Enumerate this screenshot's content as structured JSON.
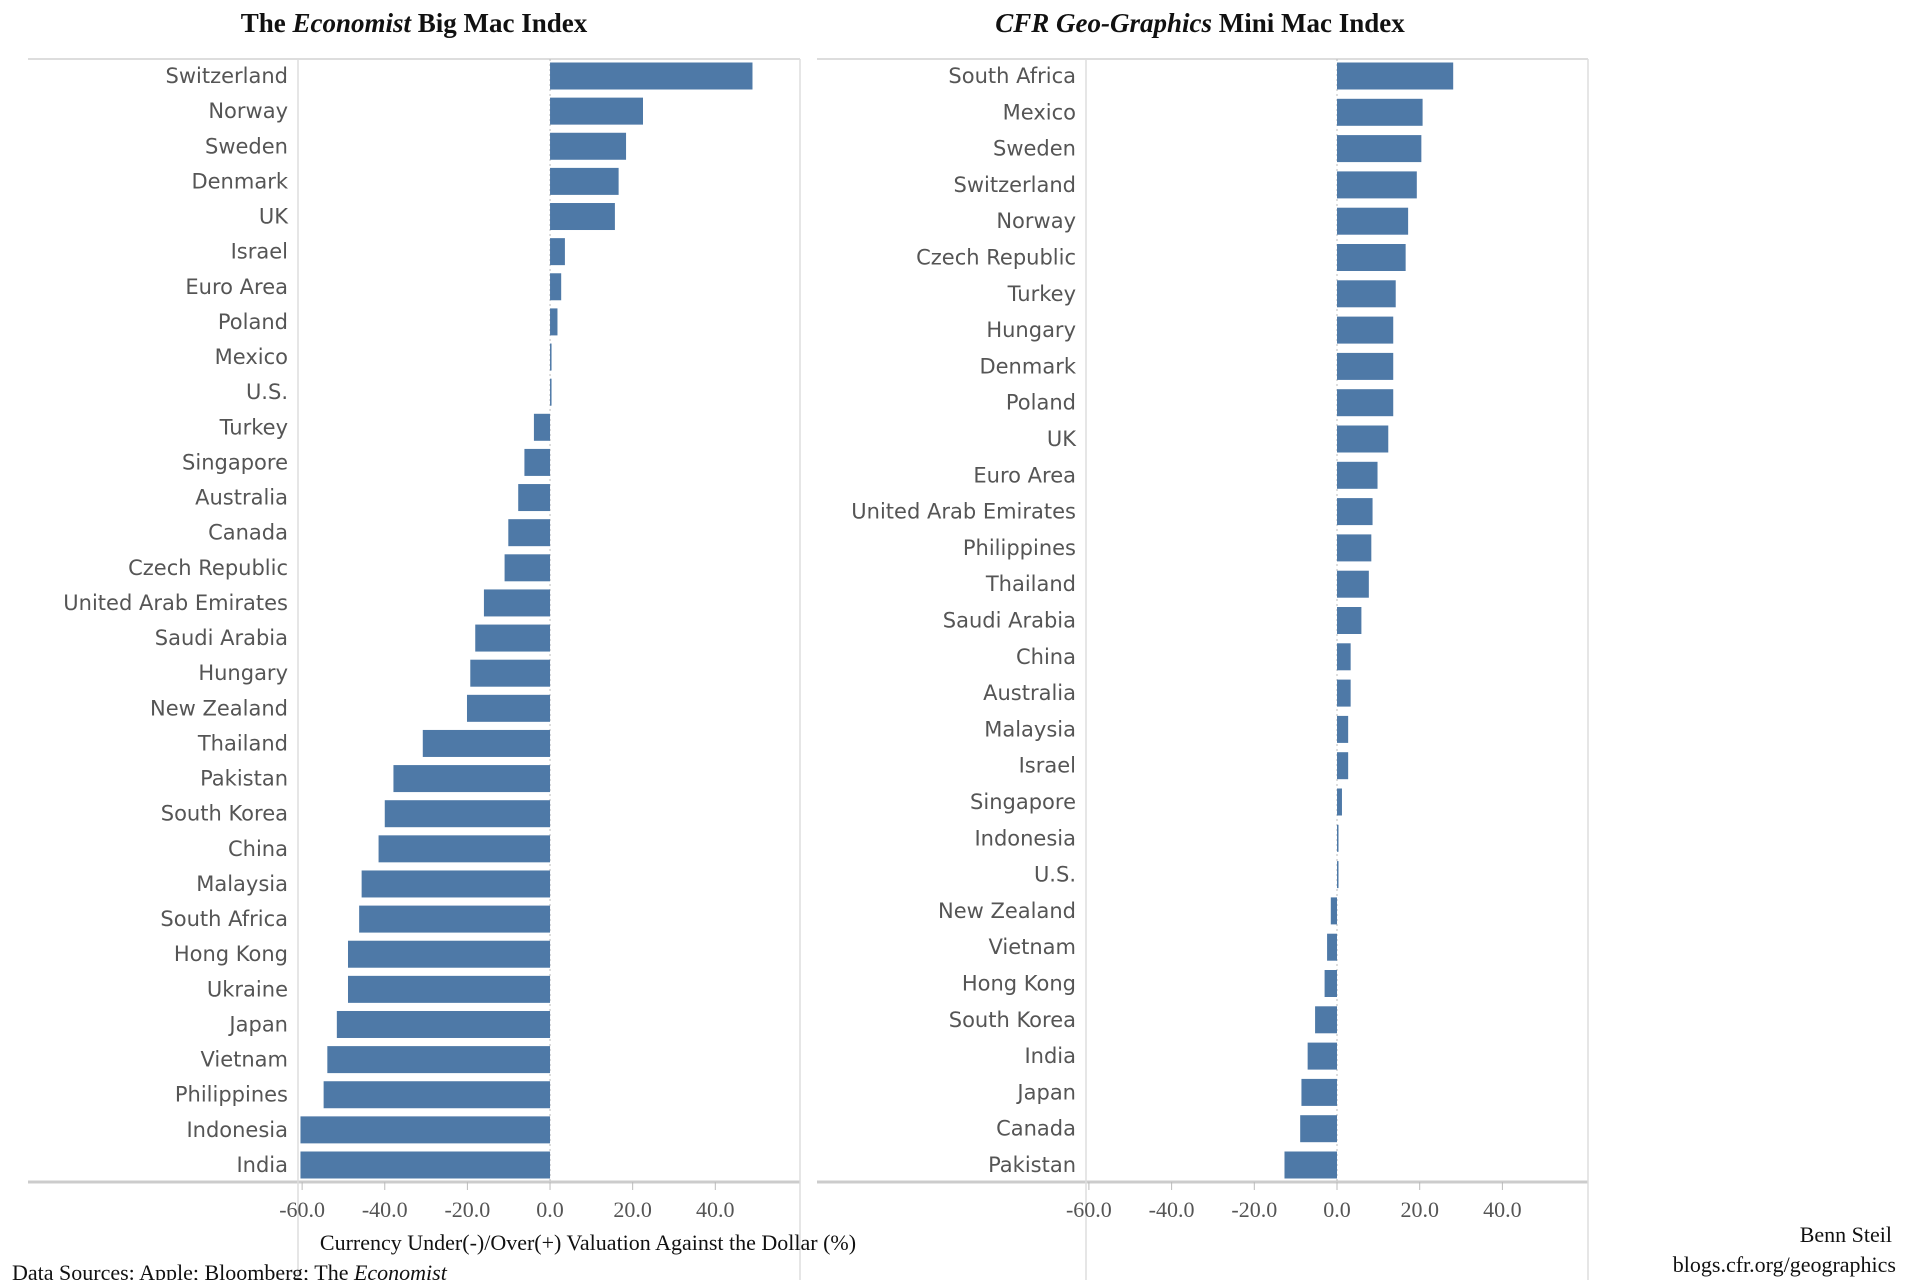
{
  "footer": {
    "axis_title": "Currency Under(-)/Over(+) Valuation Against the Dollar (%)",
    "sources_prefix": "Data Sources: Apple; Bloomberg; The ",
    "sources_italic": "Economist",
    "author": "Benn Steil",
    "site": "blogs.cfr.org/geographics"
  },
  "chart_data": [
    {
      "type": "bar",
      "orientation": "horizontal",
      "title_parts": [
        {
          "text": "The ",
          "italic": false
        },
        {
          "text": "Economist",
          "italic": true
        },
        {
          "text": " Big Mac Index",
          "italic": false
        }
      ],
      "title": "The Economist Big Mac Index",
      "xlabel": "Currency Under(-)/Over(+) Valuation Against the Dollar (%)",
      "xlim": [
        -61,
        60.5
      ],
      "xticks": [
        "-60.0",
        "-40.0",
        "-20.0",
        "0.0",
        "20.0",
        "40.0"
      ],
      "grid": false,
      "color": "#4e79a7",
      "categories": [
        "Switzerland",
        "Norway",
        "Sweden",
        "Denmark",
        "UK",
        "Israel",
        "Euro Area",
        "Poland",
        "Mexico",
        "U.S.",
        "Turkey",
        "Singapore",
        "Australia",
        "Canada",
        "Czech Republic",
        "United Arab Emirates",
        "Saudi Arabia",
        "Hungary",
        "New Zealand",
        "Thailand",
        "Pakistan",
        "South Korea",
        "China",
        "Malaysia",
        "South Africa",
        "Hong Kong",
        "Ukraine",
        "Japan",
        "Vietnam",
        "Philippines",
        "Indonesia",
        "India"
      ],
      "values": [
        49.0,
        22.5,
        18.4,
        16.6,
        15.7,
        3.6,
        2.7,
        1.8,
        0.3,
        0.0,
        -3.9,
        -6.2,
        -7.7,
        -10.1,
        -11.0,
        -16.0,
        -18.1,
        -19.3,
        -20.1,
        -30.8,
        -37.9,
        -40.0,
        -41.5,
        -45.6,
        -46.2,
        -48.9,
        -48.9,
        -51.6,
        -53.9,
        -54.8,
        -60.4,
        -60.4
      ]
    },
    {
      "type": "bar",
      "orientation": "horizontal",
      "title_parts": [
        {
          "text": "CFR Geo-Graphics",
          "italic": true
        },
        {
          "text": " Mini Mac Index",
          "italic": false
        }
      ],
      "title": "CFR Geo-Graphics Mini Mac Index",
      "xlim": [
        -60.7,
        60.7
      ],
      "xticks": [
        "-60.0",
        "-40.0",
        "-20.0",
        "0.0",
        "20.0",
        "40.0"
      ],
      "grid": false,
      "color": "#4e79a7",
      "categories": [
        "South Africa",
        "Mexico",
        "Sweden",
        "Switzerland",
        "Norway",
        "Czech Republic",
        "Turkey",
        "Hungary",
        "Denmark",
        "Poland",
        "UK",
        "Euro Area",
        "United Arab Emirates",
        "Philippines",
        "Thailand",
        "Saudi Arabia",
        "China",
        "Australia",
        "Malaysia",
        "Israel",
        "Singapore",
        "Indonesia",
        "U.S.",
        "New Zealand",
        "Vietnam",
        "Hong Kong",
        "South Korea",
        "India",
        "Japan",
        "Canada",
        "Pakistan"
      ],
      "values": [
        28.1,
        20.7,
        20.4,
        19.3,
        17.2,
        16.6,
        14.2,
        13.6,
        13.6,
        13.6,
        12.4,
        9.8,
        8.6,
        8.3,
        7.7,
        5.9,
        3.3,
        3.3,
        2.7,
        2.7,
        1.2,
        0.3,
        0.0,
        -1.5,
        -2.4,
        -3.0,
        -5.3,
        -7.1,
        -8.6,
        -8.9,
        -12.7
      ]
    }
  ]
}
